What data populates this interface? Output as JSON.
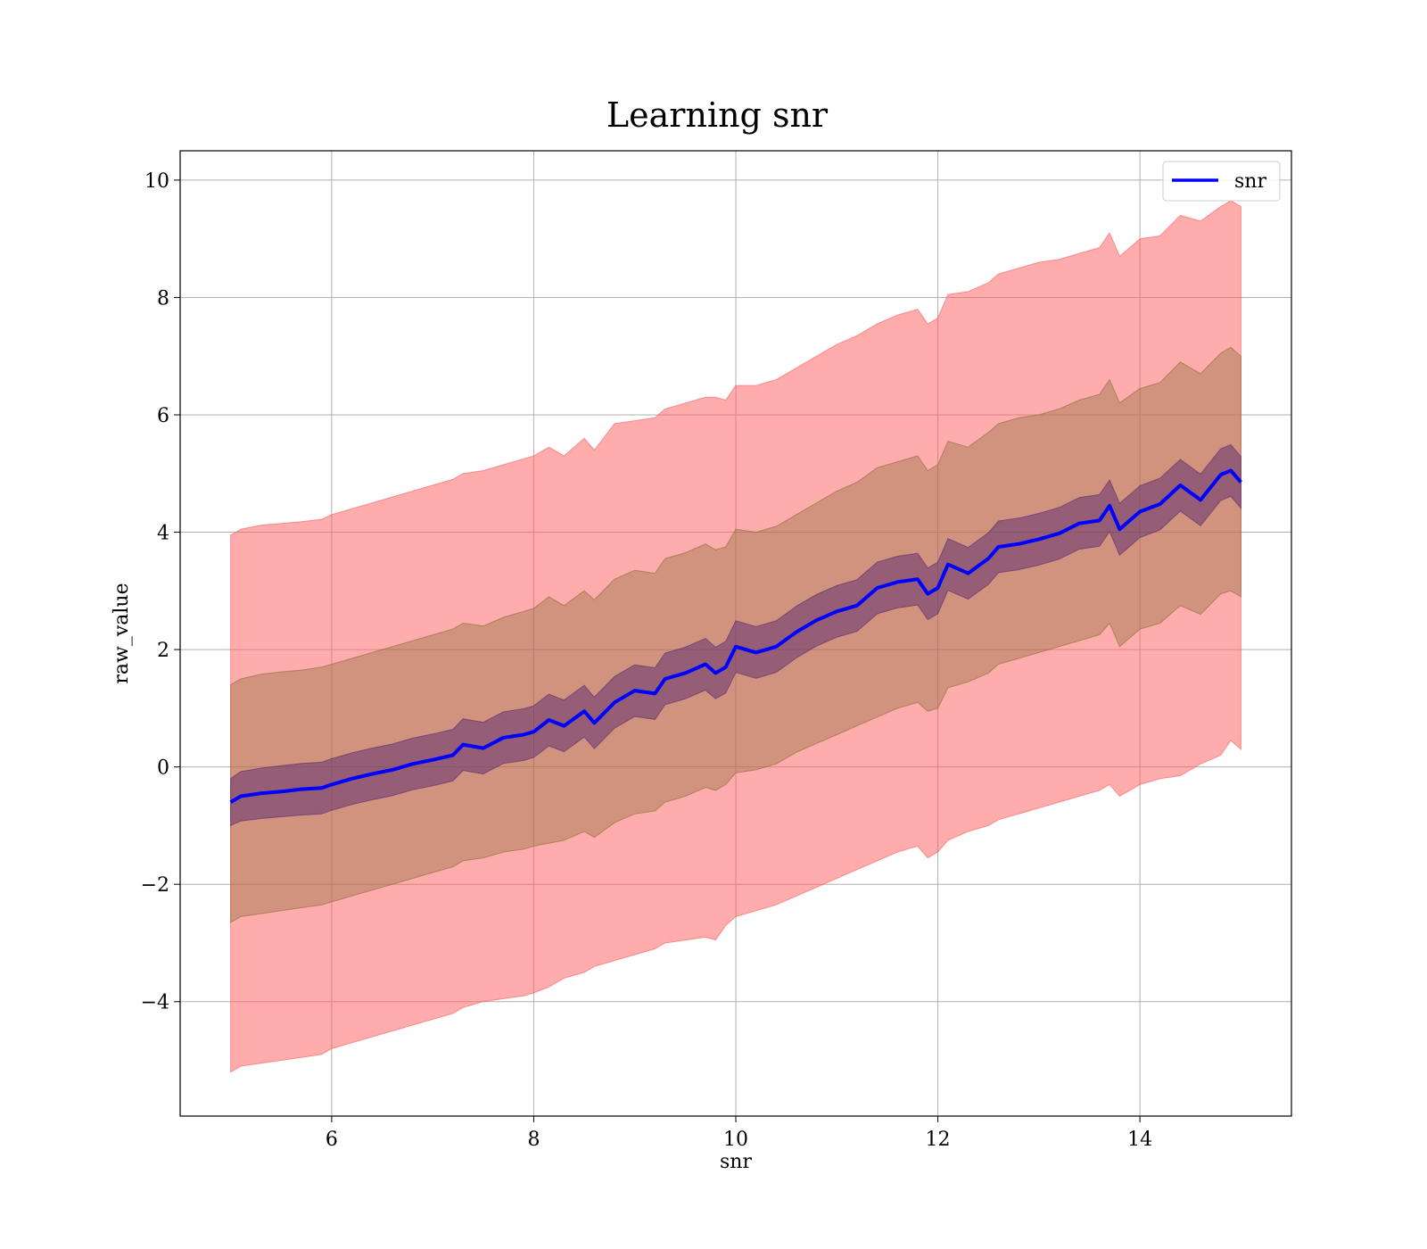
{
  "chart_data": {
    "type": "line",
    "title": "Learning snr",
    "xlabel": "snr",
    "ylabel": "raw_value",
    "xlim": [
      4.5,
      15.5
    ],
    "ylim": [
      -5.95,
      10.5
    ],
    "x_ticks": [
      6,
      8,
      10,
      12,
      14
    ],
    "y_ticks": [
      -4,
      -2,
      0,
      2,
      4,
      6,
      8,
      10
    ],
    "x_tick_labels": [
      "6",
      "8",
      "10",
      "12",
      "14"
    ],
    "y_tick_labels": [
      "−4",
      "−2",
      "0",
      "2",
      "4",
      "6",
      "8",
      "10"
    ],
    "grid": true,
    "legend": {
      "position": "top-right",
      "entries": [
        "snr"
      ]
    },
    "colors": {
      "line": "#0000ff",
      "outer_band": "#ff5a5a",
      "mid_band": "#8b6d3a",
      "inner_band": "#5a2a6e"
    },
    "series": [
      {
        "name": "snr",
        "x": [
          5.0,
          5.1,
          5.3,
          5.5,
          5.7,
          5.9,
          6.0,
          6.2,
          6.4,
          6.6,
          6.8,
          7.0,
          7.2,
          7.3,
          7.5,
          7.7,
          7.9,
          8.0,
          8.15,
          8.3,
          8.5,
          8.6,
          8.8,
          9.0,
          9.2,
          9.3,
          9.5,
          9.7,
          9.8,
          9.9,
          10.0,
          10.2,
          10.4,
          10.6,
          10.8,
          11.0,
          11.2,
          11.4,
          11.6,
          11.8,
          11.9,
          12.0,
          12.1,
          12.3,
          12.5,
          12.6,
          12.8,
          13.0,
          13.2,
          13.4,
          13.6,
          13.7,
          13.8,
          14.0,
          14.2,
          14.4,
          14.6,
          14.8,
          14.9,
          15.0
        ],
        "y": [
          -0.6,
          -0.5,
          -0.45,
          -0.42,
          -0.38,
          -0.36,
          -0.3,
          -0.2,
          -0.12,
          -0.05,
          0.05,
          0.12,
          0.2,
          0.38,
          0.32,
          0.5,
          0.55,
          0.6,
          0.8,
          0.7,
          0.95,
          0.75,
          1.1,
          1.3,
          1.25,
          1.5,
          1.6,
          1.75,
          1.6,
          1.7,
          2.05,
          1.95,
          2.05,
          2.3,
          2.5,
          2.65,
          2.75,
          3.05,
          3.15,
          3.2,
          2.95,
          3.05,
          3.45,
          3.3,
          3.55,
          3.75,
          3.8,
          3.88,
          3.98,
          4.15,
          4.2,
          4.45,
          4.05,
          4.35,
          4.48,
          4.8,
          4.55,
          4.98,
          5.05,
          4.85
        ],
        "outer_lower": [
          -5.2,
          -5.1,
          -5.05,
          -5.0,
          -4.95,
          -4.9,
          -4.8,
          -4.7,
          -4.6,
          -4.5,
          -4.4,
          -4.3,
          -4.2,
          -4.1,
          -4.0,
          -3.95,
          -3.9,
          -3.85,
          -3.75,
          -3.6,
          -3.5,
          -3.4,
          -3.3,
          -3.2,
          -3.1,
          -3.0,
          -2.95,
          -2.9,
          -2.95,
          -2.7,
          -2.55,
          -2.45,
          -2.35,
          -2.2,
          -2.05,
          -1.9,
          -1.75,
          -1.6,
          -1.45,
          -1.35,
          -1.55,
          -1.45,
          -1.25,
          -1.1,
          -1.0,
          -0.9,
          -0.8,
          -0.7,
          -0.6,
          -0.5,
          -0.4,
          -0.3,
          -0.5,
          -0.3,
          -0.2,
          -0.15,
          0.05,
          0.2,
          0.45,
          0.3
        ],
        "outer_upper": [
          3.95,
          4.05,
          4.12,
          4.15,
          4.18,
          4.22,
          4.3,
          4.4,
          4.5,
          4.6,
          4.7,
          4.8,
          4.9,
          5.0,
          5.05,
          5.15,
          5.25,
          5.3,
          5.45,
          5.3,
          5.6,
          5.4,
          5.85,
          5.9,
          5.95,
          6.1,
          6.2,
          6.3,
          6.3,
          6.25,
          6.5,
          6.5,
          6.6,
          6.8,
          7.0,
          7.2,
          7.35,
          7.55,
          7.7,
          7.8,
          7.55,
          7.65,
          8.05,
          8.1,
          8.25,
          8.4,
          8.5,
          8.6,
          8.65,
          8.75,
          8.85,
          9.1,
          8.7,
          9.0,
          9.05,
          9.4,
          9.3,
          9.55,
          9.65,
          9.55
        ],
        "mid_lower": [
          -2.65,
          -2.55,
          -2.5,
          -2.45,
          -2.4,
          -2.35,
          -2.3,
          -2.2,
          -2.1,
          -2.0,
          -1.9,
          -1.8,
          -1.7,
          -1.6,
          -1.55,
          -1.45,
          -1.4,
          -1.35,
          -1.3,
          -1.25,
          -1.1,
          -1.2,
          -0.95,
          -0.8,
          -0.75,
          -0.6,
          -0.5,
          -0.35,
          -0.4,
          -0.3,
          -0.1,
          -0.05,
          0.05,
          0.25,
          0.4,
          0.55,
          0.7,
          0.85,
          1.0,
          1.1,
          0.95,
          1.0,
          1.35,
          1.45,
          1.6,
          1.75,
          1.85,
          1.95,
          2.05,
          2.15,
          2.25,
          2.45,
          2.05,
          2.35,
          2.45,
          2.75,
          2.6,
          2.95,
          3.0,
          2.9
        ],
        "mid_upper": [
          1.4,
          1.5,
          1.58,
          1.62,
          1.65,
          1.7,
          1.75,
          1.85,
          1.95,
          2.05,
          2.15,
          2.25,
          2.35,
          2.45,
          2.4,
          2.55,
          2.65,
          2.7,
          2.9,
          2.75,
          3.0,
          2.85,
          3.2,
          3.35,
          3.3,
          3.55,
          3.65,
          3.8,
          3.7,
          3.75,
          4.05,
          4.0,
          4.1,
          4.3,
          4.5,
          4.7,
          4.85,
          5.1,
          5.2,
          5.3,
          5.05,
          5.15,
          5.55,
          5.45,
          5.7,
          5.85,
          5.95,
          6.0,
          6.1,
          6.25,
          6.35,
          6.6,
          6.2,
          6.45,
          6.55,
          6.9,
          6.7,
          7.05,
          7.15,
          7.0
        ],
        "inner_lower": [
          -1.0,
          -0.92,
          -0.88,
          -0.85,
          -0.82,
          -0.8,
          -0.74,
          -0.64,
          -0.56,
          -0.49,
          -0.39,
          -0.32,
          -0.24,
          -0.06,
          -0.12,
          0.06,
          0.11,
          0.16,
          0.36,
          0.26,
          0.51,
          0.31,
          0.66,
          0.86,
          0.81,
          1.06,
          1.16,
          1.31,
          1.16,
          1.26,
          1.61,
          1.51,
          1.61,
          1.86,
          2.06,
          2.21,
          2.31,
          2.61,
          2.71,
          2.76,
          2.51,
          2.61,
          3.01,
          2.86,
          3.11,
          3.31,
          3.36,
          3.44,
          3.54,
          3.71,
          3.76,
          4.01,
          3.61,
          3.91,
          4.04,
          4.36,
          4.11,
          4.54,
          4.61,
          4.41
        ],
        "inner_upper": [
          -0.2,
          -0.08,
          -0.02,
          0.02,
          0.06,
          0.08,
          0.14,
          0.24,
          0.32,
          0.39,
          0.49,
          0.56,
          0.64,
          0.82,
          0.76,
          0.94,
          0.99,
          1.04,
          1.24,
          1.14,
          1.39,
          1.19,
          1.54,
          1.74,
          1.69,
          1.94,
          2.04,
          2.19,
          2.04,
          2.14,
          2.49,
          2.39,
          2.49,
          2.74,
          2.94,
          3.09,
          3.19,
          3.49,
          3.59,
          3.64,
          3.39,
          3.49,
          3.89,
          3.74,
          3.99,
          4.19,
          4.24,
          4.32,
          4.42,
          4.59,
          4.64,
          4.89,
          4.49,
          4.79,
          4.92,
          5.24,
          4.99,
          5.42,
          5.49,
          5.29
        ]
      }
    ]
  }
}
